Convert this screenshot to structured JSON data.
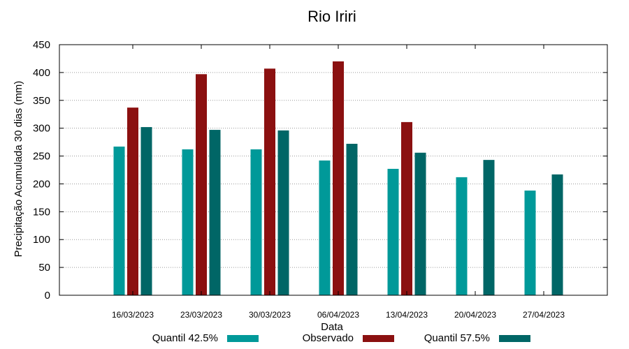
{
  "chart_data": {
    "type": "bar",
    "title": "Rio Iriri",
    "xlabel": "Data",
    "ylabel": "Precipitação Acumulada 30 dias (mm)",
    "ylim": [
      0,
      450
    ],
    "yticks": [
      0,
      50,
      100,
      150,
      200,
      250,
      300,
      350,
      400,
      450
    ],
    "grid": true,
    "legend_position": "bottom",
    "categories": [
      "16/03/2023",
      "23/03/2023",
      "30/03/2023",
      "06/04/2023",
      "13/04/2023",
      "20/04/2023",
      "27/04/2023"
    ],
    "series": [
      {
        "name": "Quantil 42.5%",
        "color": "#009999",
        "values": [
          267,
          262,
          262,
          242,
          227,
          212,
          188
        ]
      },
      {
        "name": "Observado",
        "color": "#8b1010",
        "values": [
          337,
          397,
          407,
          420,
          311,
          null,
          null
        ]
      },
      {
        "name": "Quantil 57.5%",
        "color": "#006666",
        "values": [
          302,
          297,
          296,
          272,
          256,
          243,
          217
        ]
      }
    ]
  }
}
